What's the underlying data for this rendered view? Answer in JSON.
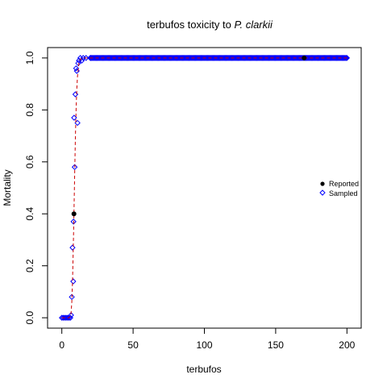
{
  "chart_data": {
    "type": "scatter",
    "title_main": "terbufos toxicity to ",
    "title_species": "P. clarkii",
    "xlabel": "terbufos",
    "ylabel": "Mortality",
    "xlim": [
      -10,
      210
    ],
    "ylim": [
      -0.04,
      1.04
    ],
    "x_ticks": [
      0,
      50,
      100,
      150,
      200
    ],
    "x_tick_labels": [
      "0",
      "50",
      "100",
      "150",
      "200"
    ],
    "y_ticks": [
      0,
      0.2,
      0.4,
      0.6,
      0.8,
      1.0
    ],
    "y_tick_labels": [
      "0.0",
      "0.2",
      "0.4",
      "0.6",
      "0.8",
      "1.0"
    ],
    "grid": false,
    "legend_position": "right",
    "series": [
      {
        "name": "Reported",
        "marker": "filled-circle",
        "color": "#000000",
        "points": [
          [
            8.5,
            0.4
          ],
          [
            170,
            1.0
          ]
        ]
      },
      {
        "name": "Sampled",
        "marker": "open-diamond",
        "color": "#0000ff",
        "points": [
          [
            0,
            0
          ],
          [
            1,
            0
          ],
          [
            2,
            0
          ],
          [
            3,
            0
          ],
          [
            4,
            0
          ],
          [
            5,
            0
          ],
          [
            6,
            0
          ],
          [
            6.5,
            0.01
          ],
          [
            7,
            0.08
          ],
          [
            7.5,
            0.27
          ],
          [
            8,
            0.14
          ],
          [
            8.2,
            0.37
          ],
          [
            8.6,
            0.77
          ],
          [
            9,
            0.58
          ],
          [
            9.5,
            0.86
          ],
          [
            10,
            0.96
          ],
          [
            10.5,
            0.95
          ],
          [
            11,
            0.75
          ],
          [
            11.5,
            0.98
          ],
          [
            12,
            0.99
          ],
          [
            13,
            1.0
          ],
          [
            14,
            0.99
          ],
          [
            15,
            1.0
          ],
          [
            17,
            1.0
          ],
          [
            20,
            1.0
          ]
        ],
        "band_x": [
          20,
          200
        ],
        "band_y": 1.0
      }
    ],
    "curve": {
      "style": "dashed",
      "color": "#cc0000",
      "description": "fitted dose-response",
      "points": [
        [
          0,
          0
        ],
        [
          5,
          0
        ],
        [
          6,
          0.005
        ],
        [
          6.5,
          0.02
        ],
        [
          7,
          0.06
        ],
        [
          7.5,
          0.14
        ],
        [
          8,
          0.26
        ],
        [
          8.5,
          0.4
        ],
        [
          9,
          0.55
        ],
        [
          9.5,
          0.69
        ],
        [
          10,
          0.8
        ],
        [
          10.5,
          0.88
        ],
        [
          11,
          0.93
        ],
        [
          12,
          0.98
        ],
        [
          13,
          0.995
        ],
        [
          15,
          1.0
        ],
        [
          200,
          1.0
        ]
      ]
    }
  }
}
